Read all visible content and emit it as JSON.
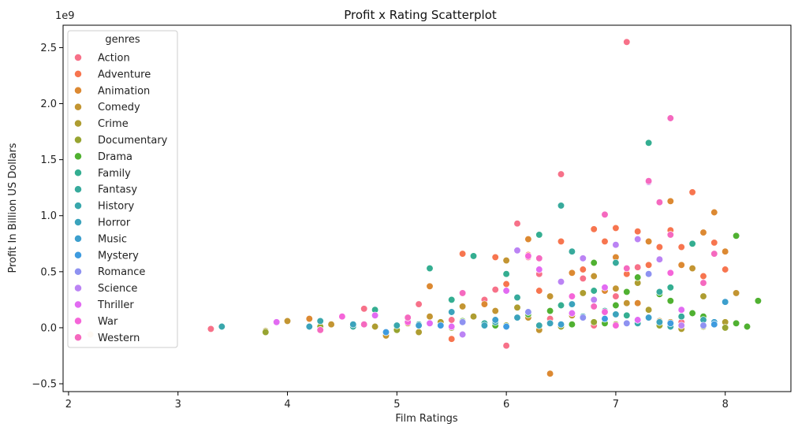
{
  "chart_data": {
    "type": "scatter",
    "title": "Profit x Rating Scatterplot",
    "xlabel": "Film Ratings",
    "ylabel": "Profit In Billion US Dollars",
    "y_offset_label": "1e9",
    "xlim": [
      1.95,
      8.6
    ],
    "ylim": [
      -0.57,
      2.7
    ],
    "x_ticks": [
      2,
      3,
      4,
      5,
      6,
      7,
      8
    ],
    "y_ticks": [
      -0.5,
      0.0,
      0.5,
      1.0,
      1.5,
      2.0,
      2.5
    ],
    "y_tick_labels": [
      "−0.5",
      "0.0",
      "0.5",
      "1.0",
      "1.5",
      "2.0",
      "2.5"
    ],
    "grid": false,
    "legend": {
      "title": "genres",
      "position": "upper-left"
    },
    "series": [
      {
        "name": "Action",
        "color": "#f77189",
        "points": [
          [
            7.1,
            2.55
          ],
          [
            6.5,
            1.37
          ],
          [
            6.1,
            0.93
          ],
          [
            6.2,
            0.63
          ],
          [
            5.8,
            0.25
          ],
          [
            6.3,
            0.48
          ],
          [
            6.6,
            0.12
          ],
          [
            5.2,
            0.21
          ],
          [
            4.7,
            0.17
          ],
          [
            6.0,
            -0.16
          ],
          [
            7.2,
            0.54
          ],
          [
            7.6,
            0.05
          ],
          [
            7.0,
            0.28
          ],
          [
            6.4,
            0.08
          ],
          [
            5.9,
            0.34
          ],
          [
            6.8,
            0.02
          ],
          [
            6.7,
            0.44
          ],
          [
            5.5,
            0.07
          ],
          [
            5.6,
            0.31
          ]
        ]
      },
      {
        "name": "Adventure",
        "color": "#f7754f",
        "points": [
          [
            7.0,
            0.89
          ],
          [
            7.2,
            0.86
          ],
          [
            7.4,
            0.72
          ],
          [
            7.7,
            1.21
          ],
          [
            7.9,
            0.76
          ],
          [
            8.0,
            0.52
          ],
          [
            6.5,
            0.77
          ],
          [
            6.2,
            0.65
          ],
          [
            5.6,
            0.66
          ],
          [
            5.5,
            -0.1
          ],
          [
            6.9,
            0.77
          ],
          [
            7.3,
            0.56
          ],
          [
            7.6,
            0.72
          ],
          [
            6.7,
            0.52
          ],
          [
            6.8,
            0.88
          ],
          [
            7.5,
            0.87
          ],
          [
            7.1,
            0.48
          ],
          [
            5.9,
            0.63
          ],
          [
            6.3,
            0.33
          ],
          [
            7.8,
            0.46
          ],
          [
            6.0,
            0.39
          ]
        ]
      },
      {
        "name": "Animation",
        "color": "#dc8932",
        "points": [
          [
            6.4,
            -0.41
          ],
          [
            7.5,
            1.13
          ],
          [
            7.9,
            1.03
          ],
          [
            7.8,
            0.85
          ],
          [
            7.6,
            0.56
          ],
          [
            8.0,
            0.68
          ],
          [
            6.6,
            0.49
          ],
          [
            7.0,
            0.63
          ],
          [
            7.3,
            0.77
          ],
          [
            6.9,
            0.33
          ],
          [
            5.8,
            0.21
          ],
          [
            5.3,
            0.37
          ],
          [
            6.2,
            0.79
          ],
          [
            7.2,
            0.22
          ],
          [
            4.2,
            0.08
          ]
        ]
      },
      {
        "name": "Comedy",
        "color": "#c39532",
        "points": [
          [
            4.0,
            0.06
          ],
          [
            4.9,
            -0.07
          ],
          [
            5.6,
            0.19
          ],
          [
            6.0,
            0.6
          ],
          [
            6.4,
            0.28
          ],
          [
            6.8,
            0.46
          ],
          [
            7.1,
            0.22
          ],
          [
            7.4,
            0.06
          ],
          [
            7.7,
            0.53
          ],
          [
            8.1,
            0.31
          ],
          [
            5.3,
            0.1
          ],
          [
            5.1,
            0.04
          ],
          [
            5.9,
            0.15
          ],
          [
            6.2,
            0.09
          ],
          [
            6.6,
            0.11
          ],
          [
            7.0,
            0.35
          ],
          [
            6.3,
            -0.02
          ],
          [
            7.5,
            0.05
          ],
          [
            4.4,
            0.03
          ]
        ]
      },
      {
        "name": "Crime",
        "color": "#ae9d31",
        "points": [
          [
            3.8,
            -0.03
          ],
          [
            4.8,
            0.01
          ],
          [
            5.4,
            0.05
          ],
          [
            6.1,
            0.18
          ],
          [
            6.7,
            0.31
          ],
          [
            7.2,
            0.4
          ],
          [
            7.8,
            0.28
          ],
          [
            8.0,
            0.05
          ],
          [
            5.7,
            0.1
          ],
          [
            6.5,
            0.02
          ],
          [
            7.3,
            0.16
          ],
          [
            7.6,
            -0.01
          ],
          [
            6.9,
            0.08
          ],
          [
            5.2,
            -0.04
          ]
        ]
      },
      {
        "name": "Documentary",
        "color": "#97a431",
        "points": [
          [
            3.8,
            -0.04
          ],
          [
            4.3,
            0.01
          ],
          [
            5.0,
            -0.02
          ],
          [
            5.5,
            0.0
          ],
          [
            6.0,
            0.02
          ],
          [
            6.5,
            0.01
          ],
          [
            7.0,
            0.03
          ],
          [
            7.4,
            0.02
          ],
          [
            7.8,
            0.01
          ],
          [
            8.0,
            0.0
          ],
          [
            6.8,
            0.05
          ],
          [
            5.8,
            0.04
          ]
        ]
      },
      {
        "name": "Drama",
        "color": "#50b131",
        "points": [
          [
            7.2,
            0.45
          ],
          [
            7.7,
            0.13
          ],
          [
            8.1,
            0.82
          ],
          [
            8.3,
            0.24
          ],
          [
            8.2,
            0.01
          ],
          [
            7.9,
            0.04
          ],
          [
            7.5,
            0.24
          ],
          [
            6.8,
            0.58
          ],
          [
            6.2,
            0.12
          ],
          [
            5.6,
            0.06
          ],
          [
            7.0,
            0.2
          ],
          [
            7.4,
            0.3
          ],
          [
            6.6,
            0.03
          ],
          [
            8.1,
            0.04
          ],
          [
            7.8,
            0.1
          ],
          [
            6.4,
            0.15
          ],
          [
            5.9,
            0.02
          ],
          [
            7.1,
            0.32
          ],
          [
            6.9,
            0.04
          ]
        ]
      },
      {
        "name": "Family",
        "color": "#34ae91",
        "points": [
          [
            7.3,
            1.65
          ],
          [
            5.3,
            0.53
          ],
          [
            6.3,
            0.83
          ],
          [
            6.8,
            0.33
          ],
          [
            7.5,
            0.36
          ],
          [
            6.0,
            0.48
          ],
          [
            5.7,
            0.64
          ],
          [
            7.7,
            0.75
          ],
          [
            4.8,
            0.16
          ],
          [
            6.5,
            0.2
          ],
          [
            7.1,
            0.11
          ],
          [
            5.5,
            0.25
          ]
        ]
      },
      {
        "name": "Fantasy",
        "color": "#37aa9c",
        "points": [
          [
            6.5,
            1.09
          ],
          [
            7.0,
            0.58
          ],
          [
            6.6,
            0.68
          ],
          [
            7.4,
            0.32
          ],
          [
            6.1,
            0.27
          ],
          [
            5.8,
            0.04
          ],
          [
            6.9,
            0.15
          ],
          [
            7.6,
            0.1
          ],
          [
            5.2,
            0.03
          ],
          [
            4.6,
            0.01
          ]
        ]
      },
      {
        "name": "History",
        "color": "#39a7ac",
        "points": [
          [
            3.4,
            0.01
          ],
          [
            4.3,
            0.06
          ],
          [
            5.0,
            0.02
          ],
          [
            5.9,
            0.05
          ],
          [
            6.7,
            0.1
          ],
          [
            7.2,
            0.04
          ],
          [
            7.8,
            0.07
          ],
          [
            6.3,
            0.02
          ],
          [
            7.5,
            0.01
          ]
        ]
      },
      {
        "name": "Horror",
        "color": "#3ba3bc",
        "points": [
          [
            4.6,
            0.03
          ],
          [
            5.1,
            0.06
          ],
          [
            5.5,
            0.14
          ],
          [
            6.1,
            0.09
          ],
          [
            6.6,
            0.21
          ],
          [
            7.0,
            0.12
          ],
          [
            7.4,
            0.05
          ],
          [
            4.2,
            0.01
          ],
          [
            5.8,
            0.02
          ],
          [
            6.4,
            0.04
          ]
        ]
      },
      {
        "name": "Music",
        "color": "#3d9fcd",
        "points": [
          [
            8.0,
            0.23
          ],
          [
            7.9,
            0.05
          ],
          [
            7.3,
            0.09
          ],
          [
            6.5,
            0.03
          ],
          [
            5.9,
            0.07
          ],
          [
            5.2,
            0.02
          ]
        ]
      },
      {
        "name": "Mystery",
        "color": "#3e9bdf",
        "points": [
          [
            7.9,
            0.03
          ],
          [
            6.9,
            0.08
          ],
          [
            6.0,
            0.01
          ],
          [
            5.4,
            0.02
          ],
          [
            7.5,
            0.04
          ],
          [
            4.9,
            -0.04
          ]
        ]
      },
      {
        "name": "Romance",
        "color": "#8e92f1",
        "points": [
          [
            7.3,
            0.48
          ],
          [
            6.7,
            0.09
          ],
          [
            6.2,
            0.14
          ],
          [
            5.6,
            0.05
          ],
          [
            7.1,
            0.04
          ],
          [
            7.8,
            0.02
          ]
        ]
      },
      {
        "name": "Science",
        "color": "#bb83f4",
        "points": [
          [
            7.2,
            0.79
          ],
          [
            7.4,
            0.61
          ],
          [
            6.7,
            0.62
          ],
          [
            7.0,
            0.74
          ],
          [
            6.1,
            0.69
          ],
          [
            6.5,
            0.41
          ],
          [
            7.3,
            1.3
          ],
          [
            6.8,
            0.25
          ],
          [
            5.6,
            -0.06
          ],
          [
            7.6,
            0.02
          ]
        ]
      },
      {
        "name": "Thriller",
        "color": "#e26bf2",
        "points": [
          [
            3.9,
            0.05
          ],
          [
            4.8,
            0.11
          ],
          [
            5.3,
            0.04
          ],
          [
            6.0,
            0.33
          ],
          [
            6.6,
            0.13
          ],
          [
            7.2,
            0.07
          ],
          [
            7.6,
            0.16
          ],
          [
            6.3,
            0.52
          ],
          [
            6.9,
            0.36
          ],
          [
            5.5,
            0.01
          ]
        ]
      },
      {
        "name": "War",
        "color": "#f565d9",
        "points": [
          [
            6.2,
            0.64
          ],
          [
            7.5,
            0.49
          ],
          [
            6.6,
            0.28
          ],
          [
            5.1,
            0.05
          ],
          [
            4.5,
            0.1
          ],
          [
            6.9,
            0.14
          ],
          [
            7.0,
            0.02
          ]
        ]
      },
      {
        "name": "Western",
        "color": "#f569bf",
        "points": [
          [
            7.5,
            1.87
          ],
          [
            7.3,
            1.31
          ],
          [
            6.9,
            1.01
          ],
          [
            7.4,
            1.12
          ],
          [
            7.5,
            0.83
          ],
          [
            7.9,
            0.66
          ],
          [
            7.1,
            0.53
          ],
          [
            5.6,
            0.31
          ],
          [
            6.8,
            0.19
          ],
          [
            5.1,
            0.09
          ],
          [
            4.7,
            0.03
          ],
          [
            6.3,
            0.62
          ],
          [
            4.3,
            -0.02
          ],
          [
            7.8,
            0.4
          ]
        ]
      }
    ],
    "extra_points": [
      {
        "color": "#f77189",
        "x": 3.3,
        "y": -0.01
      },
      {
        "color": "#f5d8b0",
        "x": 2.2,
        "y": -0.06
      }
    ]
  }
}
